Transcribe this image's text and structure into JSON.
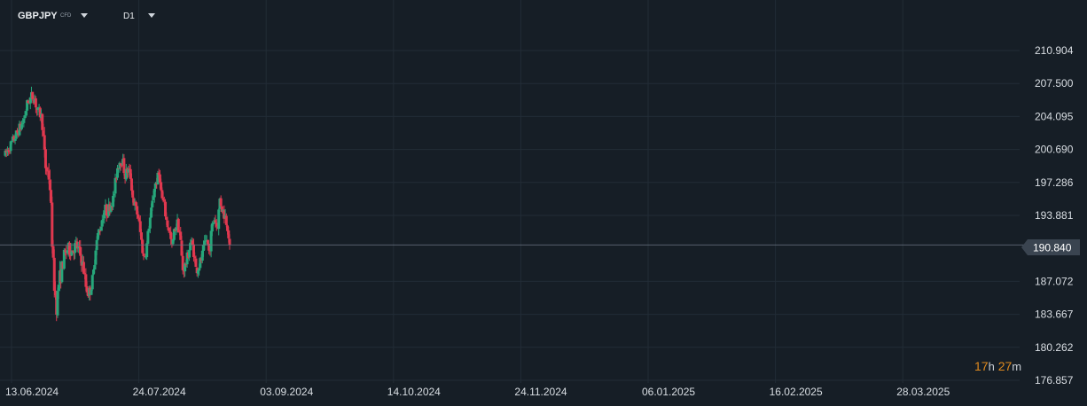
{
  "toolbar": {
    "symbol": "GBPJPY",
    "instrument_type": "CFD",
    "timeframe": "D1"
  },
  "timer": {
    "hours": "17",
    "hours_unit": "h",
    "minutes": "27",
    "minutes_unit": "m"
  },
  "colors": {
    "background": "#161e26",
    "grid": "#222c36",
    "bull": "#26a67a",
    "bear": "#e0384f",
    "text": "#d9dee3",
    "price_tag": "#3a4450",
    "timer": "#e08a1e"
  },
  "chart_data": {
    "type": "candlestick",
    "current_price": 190.84,
    "current_price_label": "190.840",
    "y_ticks": [
      "210.904",
      "207.500",
      "204.095",
      "200.690",
      "197.286",
      "193.881",
      "190.840",
      "187.072",
      "183.667",
      "180.262",
      "176.857"
    ],
    "y_tick_values": [
      210.904,
      207.5,
      204.095,
      200.69,
      197.286,
      193.881,
      190.84,
      187.072,
      183.667,
      180.262,
      176.857
    ],
    "x_ticks": [
      "13.06.2024",
      "24.07.2024",
      "03.09.2024",
      "14.10.2024",
      "24.11.2024",
      "06.01.2025",
      "16.02.2025",
      "28.03.2025"
    ],
    "ylim": [
      176.857,
      210.904
    ],
    "grid": true,
    "candle_count": 207,
    "close_path": [
      [
        0,
        200.1
      ],
      [
        5,
        201.0
      ],
      [
        10,
        201.8
      ],
      [
        15,
        202.7
      ],
      [
        20,
        203.5
      ],
      [
        25,
        205.5
      ],
      [
        30,
        206.2
      ],
      [
        33,
        206.0
      ],
      [
        36,
        204.6
      ],
      [
        40,
        204.3
      ],
      [
        42,
        203.2
      ],
      [
        45,
        199.0
      ],
      [
        48,
        198.3
      ],
      [
        50,
        197.6
      ],
      [
        52,
        193.5
      ],
      [
        54,
        188.5
      ],
      [
        56,
        186.0
      ],
      [
        58,
        184.5
      ],
      [
        60,
        186.8
      ],
      [
        63,
        188.0
      ],
      [
        66,
        189.5
      ],
      [
        70,
        190.4
      ],
      [
        75,
        190.3
      ],
      [
        80,
        190.8
      ],
      [
        84,
        190.0
      ],
      [
        88,
        188.5
      ],
      [
        91,
        186.5
      ],
      [
        94,
        185.8
      ],
      [
        96,
        186.3
      ],
      [
        99,
        187.5
      ],
      [
        102,
        190.8
      ],
      [
        105,
        192.0
      ],
      [
        108,
        193.0
      ],
      [
        112,
        194.6
      ],
      [
        115,
        194.2
      ],
      [
        118,
        194.9
      ],
      [
        122,
        195.6
      ],
      [
        126,
        198.7
      ],
      [
        129,
        199.5
      ],
      [
        132,
        199.6
      ],
      [
        135,
        198.0
      ],
      [
        138,
        198.6
      ],
      [
        141,
        198.1
      ],
      [
        144,
        195.5
      ],
      [
        147,
        194.6
      ],
      [
        150,
        193.7
      ],
      [
        153,
        191.6
      ],
      [
        156,
        189.5
      ],
      [
        159,
        190.3
      ],
      [
        162,
        192.8
      ],
      [
        165,
        194.5
      ],
      [
        168,
        196.8
      ],
      [
        171,
        197.5
      ],
      [
        174,
        198.3
      ],
      [
        176,
        195.8
      ],
      [
        179,
        195.0
      ],
      [
        182,
        193.2
      ],
      [
        185,
        192.3
      ],
      [
        188,
        190.5
      ],
      [
        191,
        192.5
      ],
      [
        194,
        193.1
      ],
      [
        197,
        192.0
      ],
      [
        200,
        188.3
      ],
      [
        203,
        188.7
      ],
      [
        206,
        189.8
      ],
      [
        209,
        191.2
      ],
      [
        212,
        190.5
      ],
      [
        215,
        188.3
      ],
      [
        218,
        188.6
      ],
      [
        221,
        189.3
      ],
      [
        224,
        190.4
      ],
      [
        227,
        191.5
      ],
      [
        230,
        190.0
      ],
      [
        233,
        192.6
      ],
      [
        236,
        193.7
      ],
      [
        239,
        192.5
      ],
      [
        242,
        195.6
      ],
      [
        245,
        194.4
      ],
      [
        248,
        193.8
      ],
      [
        251,
        192.7
      ],
      [
        253,
        190.8
      ]
    ],
    "volatility": [
      [
        0,
        0.85
      ],
      [
        40,
        0.95
      ],
      [
        55,
        1.9
      ],
      [
        62,
        1.5
      ],
      [
        70,
        1.1
      ],
      [
        100,
        1.0
      ],
      [
        130,
        0.9
      ],
      [
        200,
        0.9
      ],
      [
        253,
        1.0
      ]
    ]
  }
}
